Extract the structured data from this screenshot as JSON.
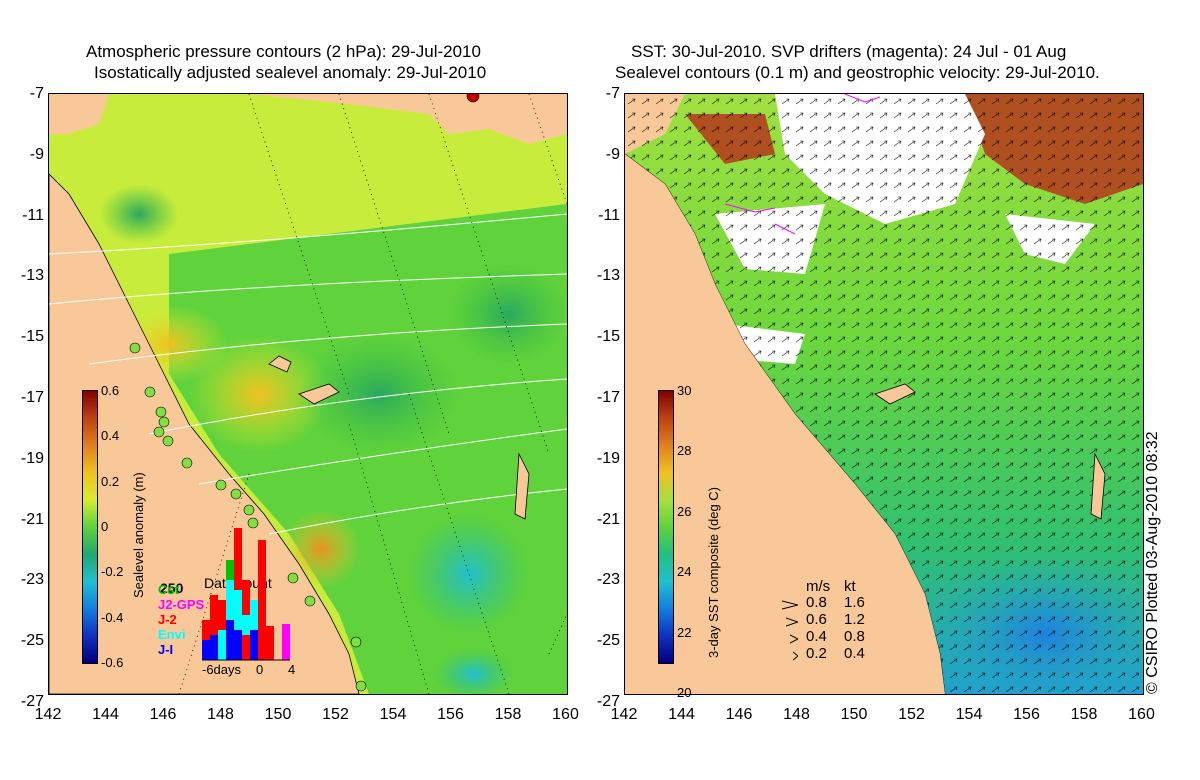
{
  "left_panel": {
    "title_line1": "Atmospheric pressure contours (2 hPa): 29-Jul-2010",
    "title_line2": "Isostatically adjusted sealevel anomaly: 29-Jul-2010",
    "colorbar": {
      "label": "Sealevel anomaly (m)",
      "ticks": [
        "0.6",
        "0.4",
        "0.2",
        "0",
        "-0.2",
        "-0.4",
        "-0.6"
      ]
    },
    "data_count": {
      "title": "Data count",
      "scale": "250",
      "legend": [
        "Cst",
        "J2-GPS",
        "J-2",
        "Envi",
        "J-I"
      ],
      "legend_colors": [
        "#00c000",
        "#ff00ff",
        "#ff0000",
        "#00ffff",
        "#0000ff"
      ],
      "x_ticks": [
        "-6days",
        "0",
        "4"
      ]
    }
  },
  "right_panel": {
    "title_line1": "SST: 30-Jul-2010. SVP drifters (magenta): 24 Jul - 01 Aug",
    "title_line2": "Sealevel contours (0.1 m) and geostrophic velocity: 29-Jul-2010.",
    "colorbar": {
      "label": "3-day SST composite (deg C)",
      "ticks": [
        "30",
        "28",
        "26",
        "24",
        "22",
        "20"
      ]
    },
    "velocity_legend": {
      "header_ms": "m/s",
      "header_kt": "kt",
      "rows": [
        {
          "ms": "0.8",
          "kt": "1.6"
        },
        {
          "ms": "0.6",
          "kt": "1.2"
        },
        {
          "ms": "0.4",
          "kt": "0.8"
        },
        {
          "ms": "0.2",
          "kt": "0.4"
        }
      ]
    }
  },
  "axes": {
    "lat_ticks": [
      "-7",
      "-9",
      "-11",
      "-13",
      "-15",
      "-17",
      "-19",
      "-21",
      "-23",
      "-25",
      "-27"
    ],
    "lon_ticks": [
      "142",
      "144",
      "146",
      "148",
      "150",
      "152",
      "154",
      "156",
      "158",
      "160"
    ]
  },
  "credit": "© CSIRO Plotted 03-Aug-2010 08:32",
  "colors": {
    "land": "#f9c898",
    "sla_green": "#5fd23c",
    "sla_yellowgreen": "#c8f03c",
    "sst_green": "#6ed83c"
  }
}
